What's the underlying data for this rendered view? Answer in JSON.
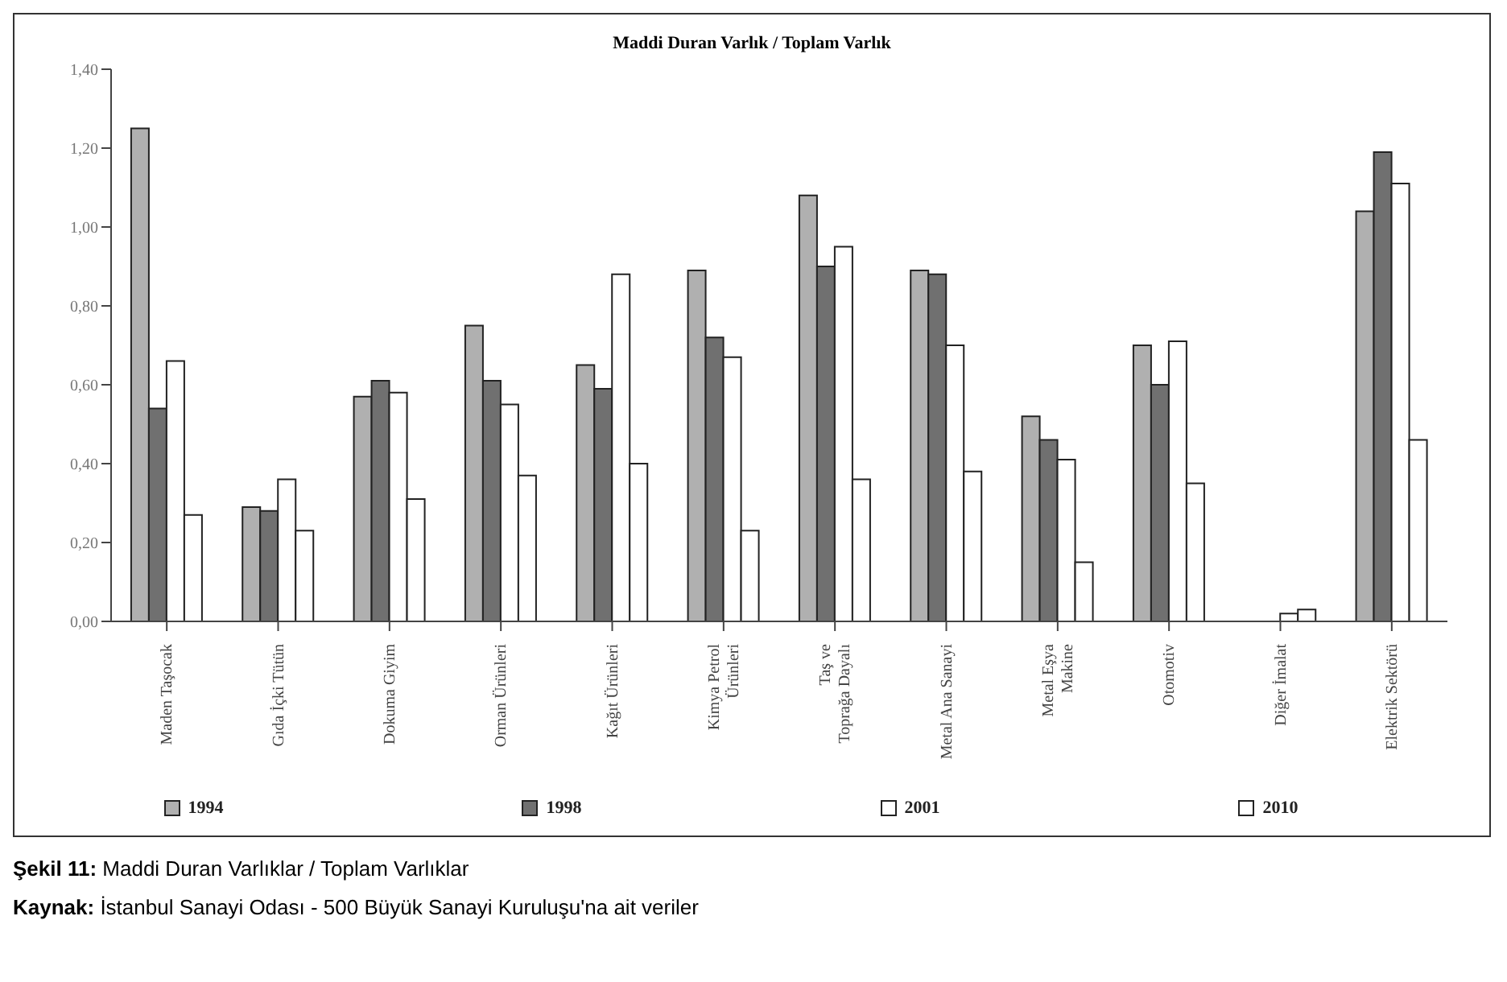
{
  "chart_data": {
    "type": "bar",
    "title": "Maddi Duran Varlık / Toplam Varlık",
    "categories": [
      "Maden Taşocak",
      "Gıda İçki Tütün",
      "Dokuma Giyim",
      "Orman Ürünleri",
      "Kağıt Ürünleri",
      "Kimya Petrol Ürünleri",
      "Taş ve Toprağa Dayalı",
      "Metal Ana Sanayi",
      "Metal Eşya Makine",
      "Otomotiv",
      "Diğer İmalat",
      "Elektrik Sektörü"
    ],
    "series": [
      {
        "name": "1994",
        "color": "#b0b0b0",
        "values": [
          1.25,
          0.29,
          0.57,
          0.75,
          0.65,
          0.89,
          1.08,
          0.89,
          0.52,
          0.7,
          null,
          1.04
        ]
      },
      {
        "name": "1998",
        "color": "#707070",
        "values": [
          0.54,
          0.28,
          0.61,
          0.61,
          0.59,
          0.72,
          0.9,
          0.88,
          0.46,
          0.6,
          null,
          1.19
        ]
      },
      {
        "name": "2001",
        "color": "#ffffff",
        "values": [
          0.66,
          0.36,
          0.58,
          0.55,
          0.88,
          0.67,
          0.95,
          0.7,
          0.41,
          0.71,
          0.02,
          1.11
        ]
      },
      {
        "name": "2010",
        "color": "#ffffff",
        "values": [
          0.27,
          0.23,
          0.31,
          0.37,
          0.4,
          0.23,
          0.36,
          0.38,
          0.15,
          0.35,
          0.03,
          0.46
        ]
      }
    ],
    "ylim": [
      0,
      1.4
    ],
    "yticks": [
      {
        "value": 0,
        "label": "0,00"
      },
      {
        "value": 0.2,
        "label": "0,20"
      },
      {
        "value": 0.4,
        "label": "0,40"
      },
      {
        "value": 0.6,
        "label": "0,60"
      },
      {
        "value": 0.8,
        "label": "0,80"
      },
      {
        "value": 1.0,
        "label": "1,00"
      },
      {
        "value": 1.2,
        "label": "1,20"
      },
      {
        "value": 1.4,
        "label": "1,40"
      }
    ],
    "grid": false,
    "legend": "bottom",
    "annotations": [
      "Şekil 11: Maddi Duran Varlıklar / Toplam Varlıklar",
      "Kaynak: İstanbul Sanayi Odası - 500 Büyük Sanayi Kuruluşu'na ait veriler"
    ]
  }
}
